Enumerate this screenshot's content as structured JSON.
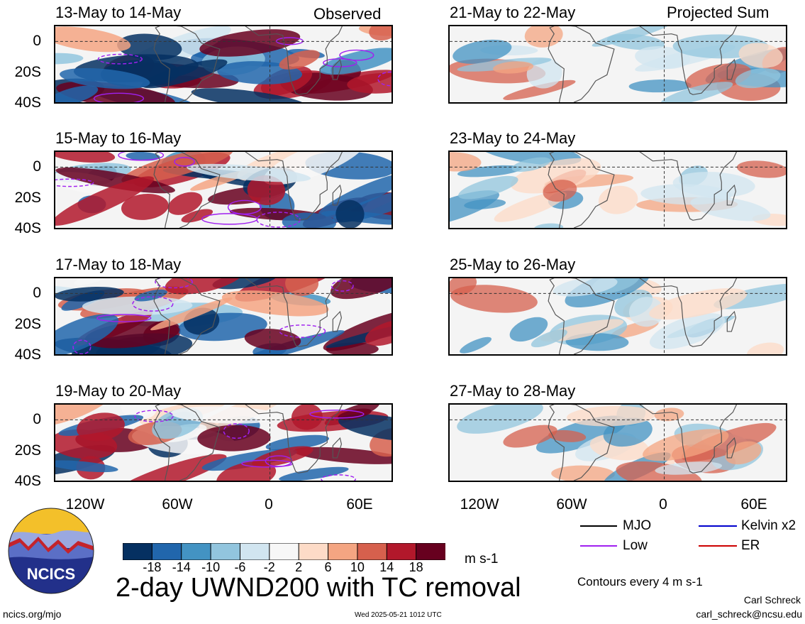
{
  "figure": {
    "title": "2-day UWND200 with TC removal",
    "units": "m s-1",
    "contour_note": "Contours every 4 m s-1",
    "author": "Carl Schreck",
    "email": "carl_schreck@ncsu.edu",
    "site": "ncics.org/mjo",
    "timestamp": "Wed 2025-05-21 1012 UTC",
    "logo_text": "NCICS"
  },
  "columns": {
    "left_label": "Observed",
    "right_label": "Projected Sum"
  },
  "panels_left": [
    {
      "title": "13-May to 14-May"
    },
    {
      "title": "15-May to 16-May"
    },
    {
      "title": "17-May to 18-May"
    },
    {
      "title": "19-May to 20-May"
    }
  ],
  "panels_right": [
    {
      "title": "21-May to 22-May"
    },
    {
      "title": "23-May to 24-May"
    },
    {
      "title": "25-May to 26-May"
    },
    {
      "title": "27-May to 28-May"
    }
  ],
  "axes": {
    "y_ticks": [
      "0",
      "20S",
      "40S"
    ],
    "x_ticks": [
      "120W",
      "60W",
      "0",
      "60E"
    ]
  },
  "colorbar": {
    "ticks": [
      "-18",
      "-14",
      "-10",
      "-6",
      "-2",
      "2",
      "6",
      "10",
      "14",
      "18"
    ],
    "colors": [
      "#053061",
      "#2166ac",
      "#4393c3",
      "#92c5de",
      "#d1e5f0",
      "#f7f7f7",
      "#fddbc7",
      "#f4a582",
      "#d6604d",
      "#b2182b",
      "#67001f"
    ]
  },
  "legend": {
    "items": [
      {
        "label": "MJO",
        "color": "#000000"
      },
      {
        "label": "Kelvin x2",
        "color": "#0000cc"
      },
      {
        "label": "Low",
        "color": "#a020f0"
      },
      {
        "label": "ER",
        "color": "#cc0000"
      }
    ]
  }
}
